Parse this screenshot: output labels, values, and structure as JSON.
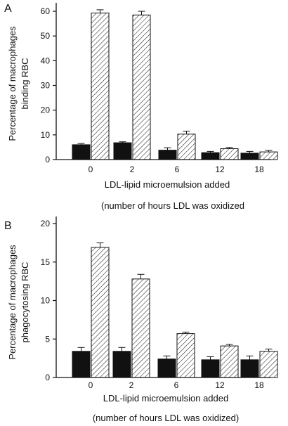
{
  "chart_data": [
    {
      "type": "bar",
      "panel_label": "A",
      "ylabel_line1": "Percentage of macrophages",
      "ylabel_line2": "binding RBC",
      "xlabel_line1": "LDL-lipid microemulsion added",
      "xlabel_line2": "(number of hours LDL was oxidized",
      "categories": [
        "0",
        "2",
        "6",
        "12",
        "18"
      ],
      "yticks": [
        "0",
        "10",
        "20",
        "30",
        "40",
        "50",
        "60"
      ],
      "ylim": [
        0,
        62
      ],
      "series": [
        {
          "fill": "solid",
          "values": [
            6.0,
            6.8,
            3.8,
            2.8,
            2.6
          ],
          "errors": [
            0.5,
            0.4,
            1.0,
            0.5,
            0.7
          ]
        },
        {
          "fill": "hatched",
          "values": [
            59.3,
            58.5,
            10.3,
            4.4,
            3.1
          ],
          "errors": [
            1.3,
            1.5,
            1.2,
            0.5,
            0.6
          ]
        }
      ]
    },
    {
      "type": "bar",
      "panel_label": "B",
      "ylabel_line1": "Percentage of macrophages",
      "ylabel_line2": "phagocytosing RBC",
      "xlabel_line1": "LDL-lipid microemulsion added",
      "xlabel_line2": "(number of hours LDL was oxidized)",
      "categories": [
        "0",
        "2",
        "6",
        "12",
        "18"
      ],
      "yticks": [
        "0",
        "5",
        "10",
        "15",
        "20"
      ],
      "ylim": [
        0,
        20
      ],
      "series": [
        {
          "fill": "solid",
          "values": [
            3.4,
            3.4,
            2.4,
            2.3,
            2.3
          ],
          "errors": [
            0.5,
            0.5,
            0.4,
            0.4,
            0.5
          ]
        },
        {
          "fill": "hatched",
          "values": [
            16.9,
            12.8,
            5.7,
            4.1,
            3.4
          ],
          "errors": [
            0.6,
            0.6,
            0.2,
            0.2,
            0.3
          ]
        }
      ]
    }
  ]
}
